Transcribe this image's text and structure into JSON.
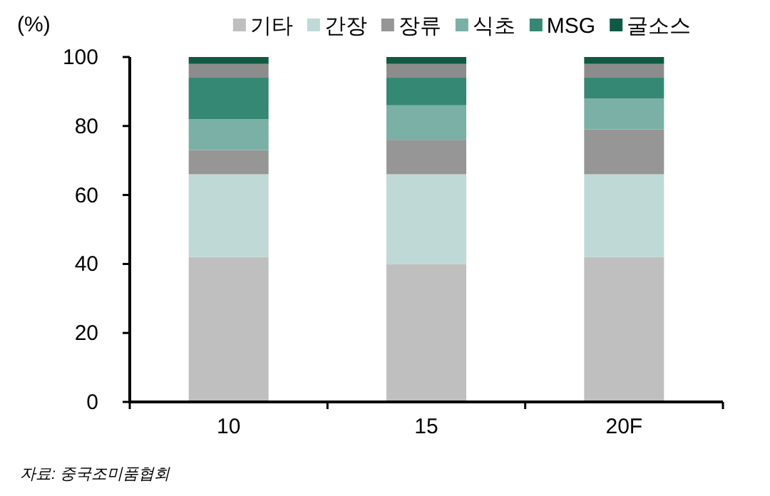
{
  "chart_data": {
    "type": "bar",
    "stacked": true,
    "ylabel": "(%)",
    "categories": [
      "10",
      "15",
      "20F"
    ],
    "series": [
      {
        "name": "기타",
        "color": "#bfbfbf",
        "values": [
          42,
          40,
          42
        ]
      },
      {
        "name": "간장",
        "color": "#bfd9d6",
        "values": [
          24,
          26,
          24
        ]
      },
      {
        "name": "장류",
        "color": "#969696",
        "values": [
          7,
          10,
          13
        ]
      },
      {
        "name": "식초",
        "color": "#7ab0a6",
        "values": [
          9,
          10,
          9
        ]
      },
      {
        "name": "MSG",
        "color": "#358873",
        "values": [
          12,
          8,
          6
        ]
      },
      {
        "color": "#8c8c8c",
        "values": [
          4,
          4,
          4
        ]
      },
      {
        "name": "굴소스",
        "color": "#0f5a42",
        "values": [
          2,
          2,
          2
        ]
      }
    ],
    "ylim": [
      0,
      100
    ],
    "yticks": [
      0,
      20,
      40,
      60,
      80,
      100
    ],
    "grid": false,
    "legend": "top",
    "annotations": [
      "자료: 중국조미품협회"
    ]
  }
}
